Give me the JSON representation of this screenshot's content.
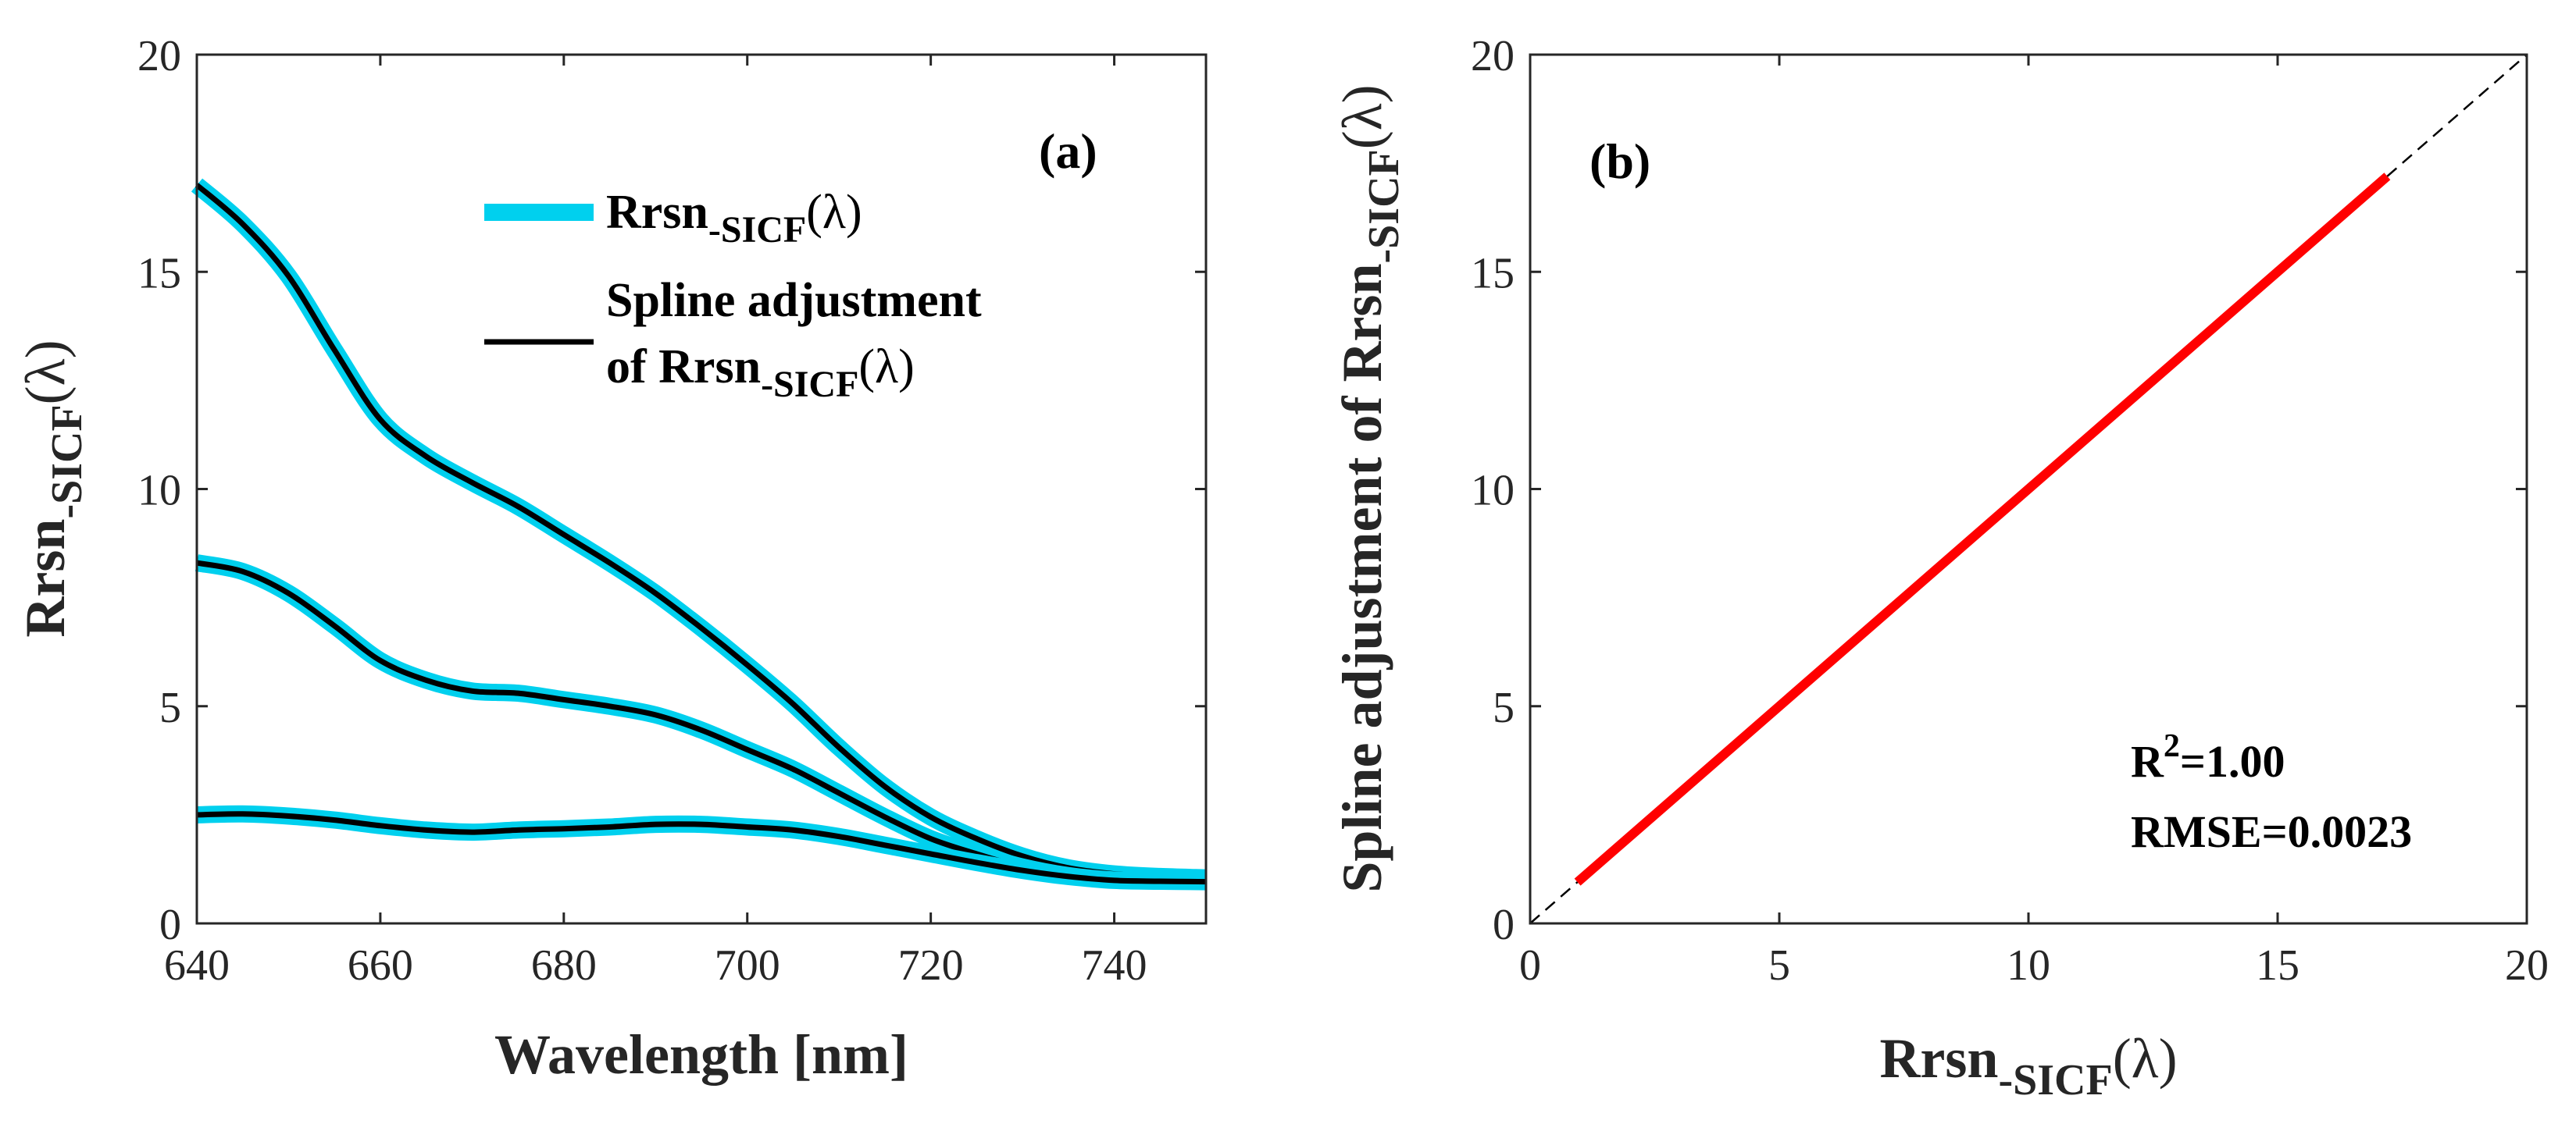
{
  "chart_data": [
    {
      "type": "line",
      "panel_label": "(a)",
      "xlabel": "Wavelength [nm]",
      "ylabel": {
        "main": "Rrsn",
        "sub": "-SICF",
        "suffix": "(λ)"
      },
      "xlim": [
        640,
        750
      ],
      "ylim": [
        0,
        20
      ],
      "xticks": [
        640,
        660,
        680,
        700,
        720,
        740
      ],
      "yticks": [
        0,
        5,
        10,
        15,
        20
      ],
      "legend": {
        "position": "top-center",
        "entries": [
          {
            "series": "measured",
            "line1": {
              "main": "Rrsn",
              "sub": "-SICF",
              "suffix": "(λ)"
            }
          },
          {
            "series": "spline",
            "line1": {
              "text": "Spline adjustment"
            },
            "line2": {
              "prefix": "of ",
              "main": "Rrsn",
              "sub": "-SICF",
              "suffix": "(λ)"
            }
          }
        ]
      },
      "styles": {
        "measured": {
          "name": "Rrsn-SICF(λ)",
          "color": "#00d0ee"
        },
        "spline": {
          "name": "Spline adjustment of Rrsn-SICF(λ)",
          "color": "#000000"
        }
      },
      "x": [
        640,
        645,
        650,
        655,
        660,
        665,
        670,
        675,
        680,
        685,
        690,
        695,
        700,
        705,
        710,
        715,
        720,
        725,
        730,
        735,
        740,
        745,
        750
      ],
      "curves": [
        {
          "name": "curve-high",
          "values": [
            17.0,
            16.1,
            14.9,
            13.2,
            11.6,
            10.75,
            10.15,
            9.6,
            8.95,
            8.3,
            7.6,
            6.8,
            5.95,
            5.05,
            4.05,
            3.15,
            2.45,
            1.95,
            1.55,
            1.28,
            1.14,
            1.08,
            1.05
          ]
        },
        {
          "name": "curve-mid",
          "values": [
            8.3,
            8.1,
            7.6,
            6.85,
            6.05,
            5.6,
            5.35,
            5.3,
            5.15,
            5.0,
            4.8,
            4.45,
            4.0,
            3.55,
            3.0,
            2.45,
            1.95,
            1.6,
            1.3,
            1.1,
            1.0,
            0.98,
            0.97
          ]
        },
        {
          "name": "curve-low",
          "values": [
            2.5,
            2.52,
            2.47,
            2.38,
            2.25,
            2.15,
            2.1,
            2.15,
            2.18,
            2.22,
            2.28,
            2.28,
            2.22,
            2.15,
            2.0,
            1.8,
            1.6,
            1.4,
            1.22,
            1.08,
            0.99,
            0.97,
            0.96
          ]
        }
      ]
    },
    {
      "type": "scatter",
      "panel_label": "(b)",
      "xlabel": {
        "main": "Rrsn",
        "sub": "-SICF",
        "suffix": "(λ)"
      },
      "ylabel": {
        "main": "Spline adjustment of Rrsn",
        "sub": "-SICF",
        "suffix": "(λ)"
      },
      "xlim": [
        0,
        20
      ],
      "ylim": [
        0,
        20
      ],
      "xticks": [
        0,
        5,
        10,
        15,
        20
      ],
      "yticks": [
        0,
        5,
        10,
        15,
        20
      ],
      "identity_line": {
        "from": [
          0,
          0
        ],
        "to": [
          20,
          20
        ],
        "style": "dashed",
        "color": "#000000"
      },
      "fit_line": {
        "from": [
          0.95,
          0.95
        ],
        "to": [
          17.2,
          17.2
        ],
        "color": "#ff0000"
      },
      "annotations": {
        "r2_label": "R",
        "r2_sup": "2",
        "r2_value": "=1.00",
        "rmse": "RMSE=0.0023"
      }
    }
  ]
}
